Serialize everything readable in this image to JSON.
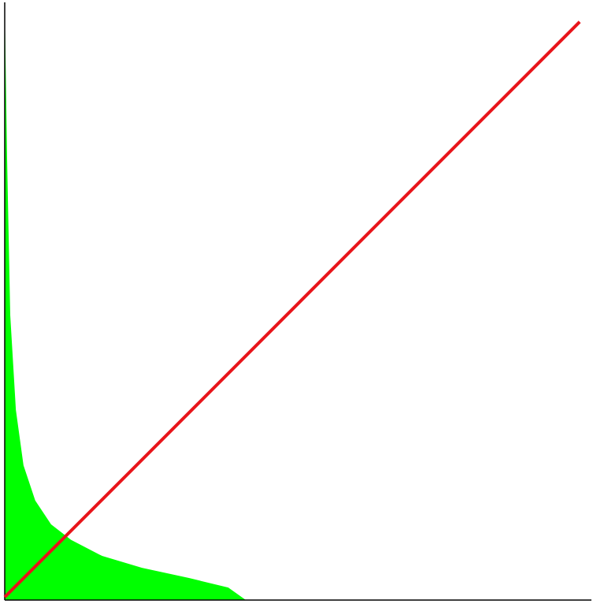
{
  "chart_data": {
    "type": "area",
    "xlim": [
      0,
      100
    ],
    "ylim": [
      0,
      100
    ],
    "series": [
      {
        "type": "area",
        "color": "#00ff00",
        "x": [
          0,
          0.4,
          0.94,
          1.9,
          3.2,
          5.2,
          7.9,
          11.3,
          16.6,
          23.4,
          31.4,
          38.1,
          41.1
        ],
        "values": [
          100,
          74.2,
          47.8,
          31.9,
          22.6,
          16.7,
          12.7,
          10.1,
          7.4,
          5.4,
          3.7,
          2.1,
          0
        ]
      },
      {
        "type": "line",
        "color": "#e8141a",
        "x": [
          0,
          98
        ],
        "values": [
          0.5,
          97
        ]
      }
    ]
  }
}
